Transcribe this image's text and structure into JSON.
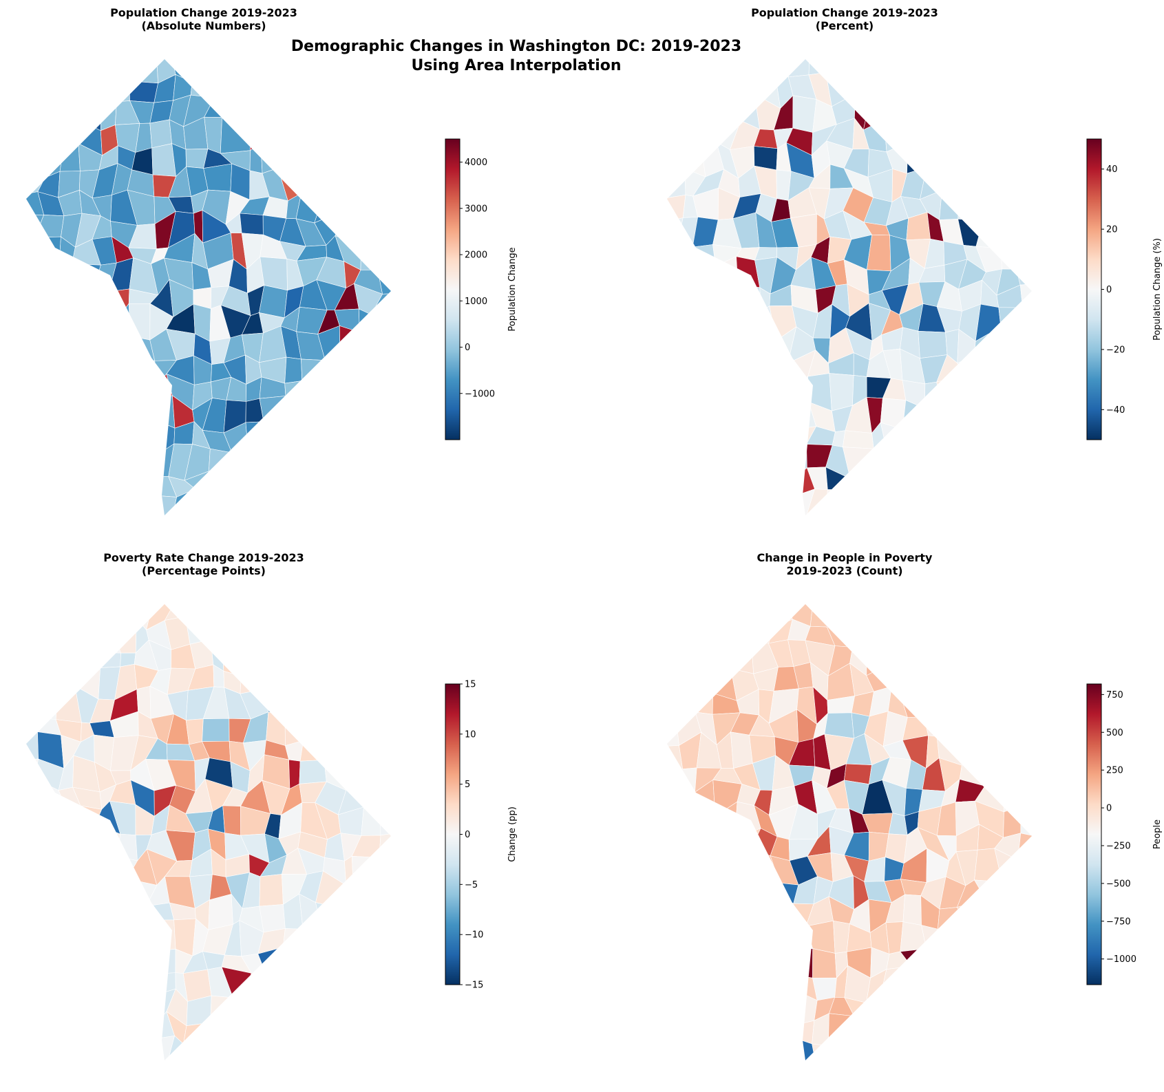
{
  "suptitle": [
    "Demographic Changes in Washington DC: 2019-2023",
    "Using Area Interpolation"
  ],
  "colormap": {
    "name": "RdBu_r",
    "stops": [
      "#053061",
      "#2166ac",
      "#4393c3",
      "#92c5de",
      "#d1e5f0",
      "#f7f7f7",
      "#fddbc7",
      "#f4a582",
      "#d6604d",
      "#b2182b",
      "#67001f"
    ]
  },
  "chart_data": [
    {
      "type": "heatmap",
      "map": "choropleth of census tracts",
      "title": [
        "Population Change 2019-2023",
        "(Absolute Numbers)"
      ],
      "colorbar_label": "Population Change",
      "range": [
        -2000,
        4500
      ],
      "ticks": [
        -1000,
        0,
        1000,
        2000,
        3000,
        4000
      ],
      "tick_labels": [
        "−1000",
        "0",
        "1000",
        "2000",
        "3000",
        "4000"
      ],
      "typical_value": -300
    },
    {
      "type": "heatmap",
      "map": "choropleth of census tracts",
      "title": [
        "Population Change 2019-2023",
        "(Percent)"
      ],
      "colorbar_label": "Population Change (%)",
      "range": [
        -50,
        50
      ],
      "ticks": [
        -40,
        -20,
        0,
        20,
        40
      ],
      "tick_labels": [
        "−40",
        "−20",
        "0",
        "20",
        "40"
      ],
      "typical_value": -5
    },
    {
      "type": "heatmap",
      "map": "choropleth of census tracts",
      "title": [
        "Poverty Rate Change 2019-2023",
        "(Percentage Points)"
      ],
      "colorbar_label": "Change (pp)",
      "range": [
        -15,
        15
      ],
      "ticks": [
        -15,
        -10,
        -5,
        0,
        5,
        10,
        15
      ],
      "tick_labels": [
        "−15",
        "−10",
        "−5",
        "0",
        "5",
        "10",
        "15"
      ],
      "typical_value": 0
    },
    {
      "type": "heatmap",
      "map": "choropleth of census tracts",
      "title": [
        "Change in People in Poverty",
        "2019-2023 (Count)"
      ],
      "colorbar_label": "People",
      "range": [
        -1170,
        820
      ],
      "ticks": [
        -1000,
        -750,
        -500,
        -250,
        0,
        250,
        500,
        750
      ],
      "tick_labels": [
        "−1000",
        "−750",
        "−500",
        "−250",
        "0",
        "250",
        "500",
        "750"
      ],
      "typical_value": 0
    }
  ]
}
